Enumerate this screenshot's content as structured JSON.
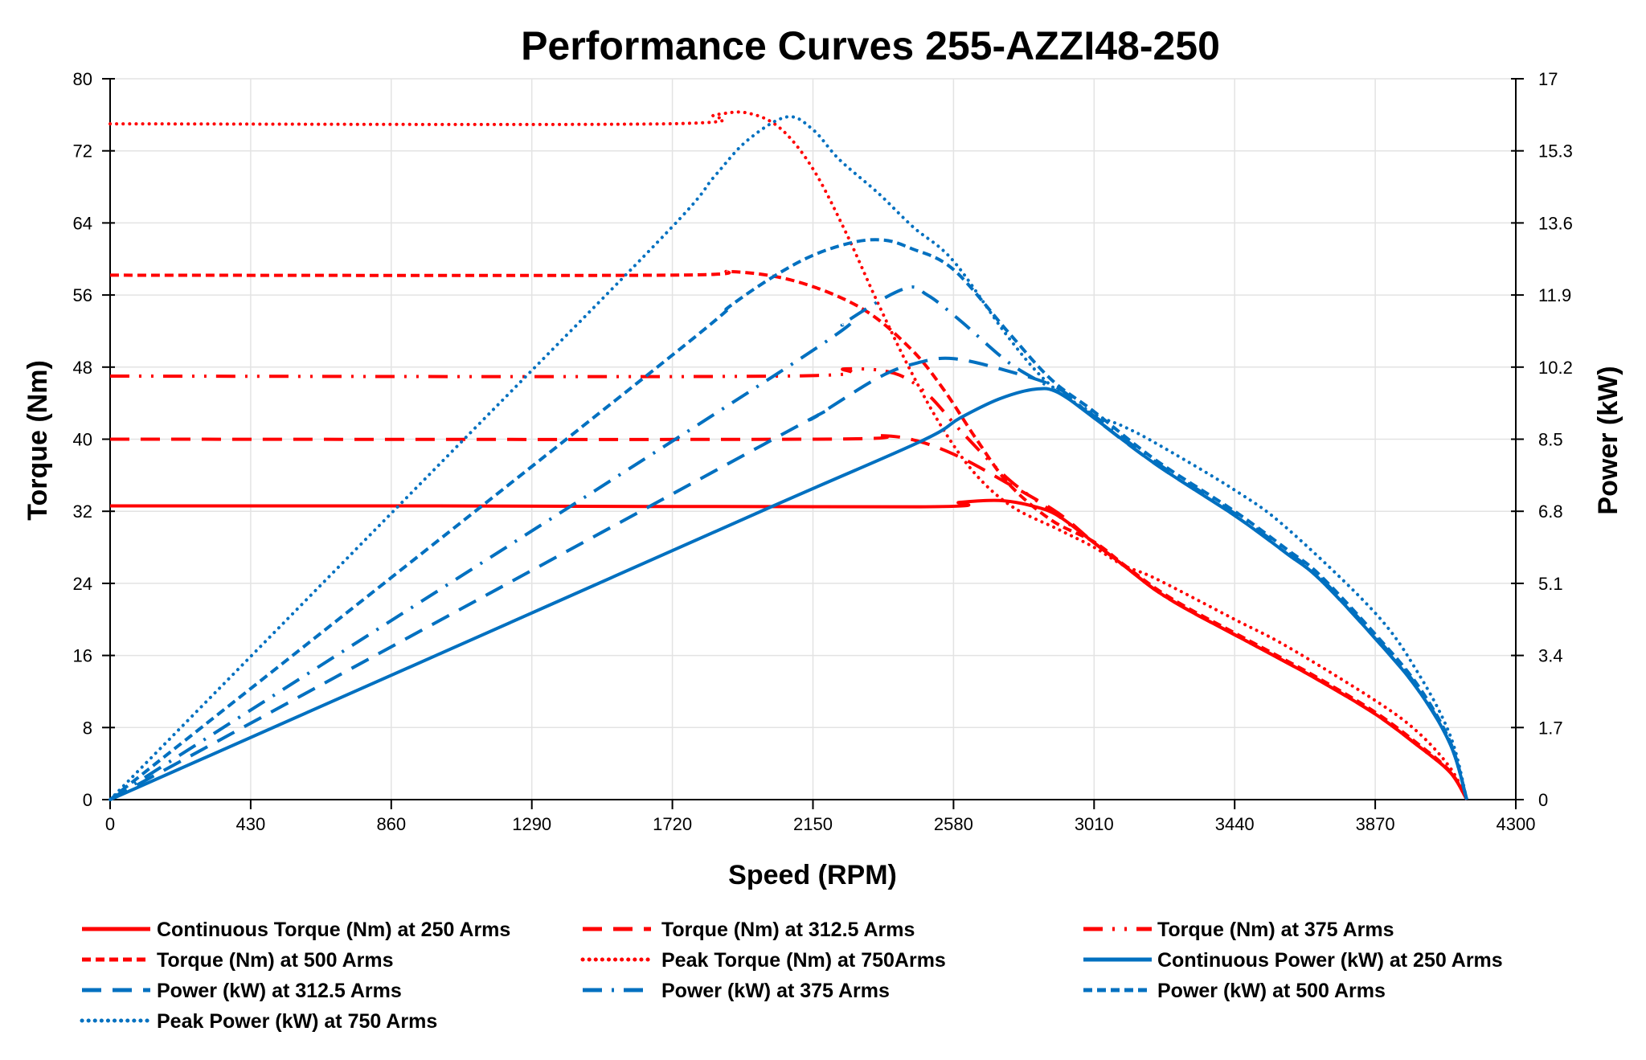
{
  "chart_data": {
    "type": "line",
    "title": "Performance Curves 255-AZZI48-250",
    "xlabel": "Speed (RPM)",
    "ylabel": "Torque (Nm)",
    "y2label": "Power (kW)",
    "xlim": [
      0,
      4300
    ],
    "ylim": [
      0,
      80
    ],
    "y2lim": [
      0,
      17
    ],
    "xticks": [
      "0",
      "430",
      "860",
      "1290",
      "1720",
      "2150",
      "2580",
      "3010",
      "3440",
      "3870",
      "4300"
    ],
    "yticks": [
      "0",
      "8",
      "16",
      "24",
      "32",
      "40",
      "48",
      "56",
      "64",
      "72",
      "80"
    ],
    "y2ticks": [
      "0",
      "1.7",
      "3.4",
      "5.1",
      "6.8",
      "8.5",
      "10.2",
      "11.9",
      "13.6",
      "15.3",
      "17"
    ],
    "grid": true,
    "legend_placement": "bottom",
    "colors": {
      "torque": "#FF0000",
      "power": "#0070C0"
    },
    "series": [
      {
        "name": "Continuous Torque (Nm) at 250 Arms",
        "axis": "left",
        "color": "#FF0000",
        "style": "solid",
        "points": [
          [
            0,
            32.6
          ],
          [
            1000,
            32.6
          ],
          [
            2480,
            32.5
          ],
          [
            2600,
            33.0
          ],
          [
            2720,
            33.2
          ],
          [
            2820,
            32.6
          ],
          [
            2900,
            31.5
          ],
          [
            3010,
            28.5
          ],
          [
            3100,
            26.0
          ],
          [
            3200,
            23.2
          ],
          [
            3300,
            21.0
          ],
          [
            3440,
            18.3
          ],
          [
            3600,
            15.2
          ],
          [
            3700,
            13.2
          ],
          [
            3870,
            9.5
          ],
          [
            4000,
            6.0
          ],
          [
            4100,
            3.0
          ],
          [
            4150,
            0
          ]
        ]
      },
      {
        "name": "Torque (Nm) at 312.5 Arms",
        "axis": "left",
        "color": "#FF0000",
        "style": "long-dash",
        "points": [
          [
            0,
            40.0
          ],
          [
            2150,
            40.0
          ],
          [
            2350,
            40.4
          ],
          [
            2470,
            39.8
          ],
          [
            2600,
            38.0
          ],
          [
            2750,
            35.0
          ],
          [
            2900,
            31.8
          ],
          [
            3010,
            28.5
          ],
          [
            3100,
            26.0
          ],
          [
            3200,
            23.2
          ],
          [
            3300,
            21.0
          ],
          [
            3440,
            18.3
          ],
          [
            3600,
            15.2
          ],
          [
            3700,
            13.2
          ],
          [
            3870,
            9.5
          ],
          [
            4000,
            6.0
          ],
          [
            4100,
            3.0
          ],
          [
            4150,
            0
          ]
        ]
      },
      {
        "name": "Torque (Nm) at 375 Arms",
        "axis": "left",
        "color": "#FF0000",
        "style": "dash-dot-dot",
        "points": [
          [
            0,
            47.0
          ],
          [
            2050,
            47.0
          ],
          [
            2250,
            47.8
          ],
          [
            2400,
            47.3
          ],
          [
            2500,
            45.0
          ],
          [
            2600,
            41.0
          ],
          [
            2750,
            35.5
          ],
          [
            2900,
            31.5
          ],
          [
            3010,
            28.5
          ],
          [
            3100,
            26.0
          ],
          [
            3200,
            23.2
          ],
          [
            3300,
            21.0
          ],
          [
            3440,
            18.3
          ],
          [
            3600,
            15.2
          ],
          [
            3700,
            13.2
          ],
          [
            3870,
            9.5
          ],
          [
            4000,
            6.0
          ],
          [
            4100,
            3.0
          ],
          [
            4150,
            0
          ]
        ]
      },
      {
        "name": "Torque (Nm) at 500 Arms",
        "axis": "left",
        "color": "#FF0000",
        "style": "short-dash",
        "points": [
          [
            0,
            58.2
          ],
          [
            1700,
            58.2
          ],
          [
            1900,
            58.6
          ],
          [
            2100,
            57.5
          ],
          [
            2300,
            54.5
          ],
          [
            2450,
            50.0
          ],
          [
            2550,
            45.5
          ],
          [
            2650,
            40.0
          ],
          [
            2750,
            35.0
          ],
          [
            2880,
            31.0
          ],
          [
            3010,
            28.6
          ],
          [
            3100,
            26.1
          ],
          [
            3200,
            23.4
          ],
          [
            3300,
            21.2
          ],
          [
            3440,
            18.5
          ],
          [
            3600,
            15.4
          ],
          [
            3700,
            13.4
          ],
          [
            3870,
            9.7
          ],
          [
            4000,
            6.2
          ],
          [
            4100,
            3.1
          ],
          [
            4150,
            0
          ]
        ]
      },
      {
        "name": "Peak  Torque (Nm) at 750Arms",
        "axis": "left",
        "color": "#FF0000",
        "style": "dotted",
        "points": [
          [
            0,
            75.0
          ],
          [
            1700,
            75.0
          ],
          [
            1850,
            76.0
          ],
          [
            1950,
            76.2
          ],
          [
            2050,
            74.5
          ],
          [
            2150,
            70.0
          ],
          [
            2250,
            63.0
          ],
          [
            2350,
            55.0
          ],
          [
            2450,
            47.5
          ],
          [
            2550,
            41.0
          ],
          [
            2650,
            36.0
          ],
          [
            2760,
            32.5
          ],
          [
            2900,
            30.0
          ],
          [
            3010,
            28.0
          ],
          [
            3100,
            26.0
          ],
          [
            3200,
            24.5
          ],
          [
            3440,
            20.0
          ],
          [
            3600,
            17.0
          ],
          [
            3870,
            11.0
          ],
          [
            4000,
            7.5
          ],
          [
            4100,
            3.5
          ],
          [
            4150,
            0
          ]
        ]
      },
      {
        "name": "Continuous Power (kW) at 250 Arms",
        "axis": "right",
        "color": "#0070C0",
        "style": "solid",
        "points": [
          [
            0,
            0
          ],
          [
            1000,
            3.41
          ],
          [
            2000,
            6.83
          ],
          [
            2480,
            8.45
          ],
          [
            2600,
            9.0
          ],
          [
            2720,
            9.45
          ],
          [
            2830,
            9.68
          ],
          [
            2900,
            9.6
          ],
          [
            3010,
            9.0
          ],
          [
            3200,
            7.9
          ],
          [
            3440,
            6.7
          ],
          [
            3600,
            5.8
          ],
          [
            3700,
            5.2
          ],
          [
            3870,
            3.8
          ],
          [
            4000,
            2.6
          ],
          [
            4100,
            1.3
          ],
          [
            4150,
            0
          ]
        ]
      },
      {
        "name": "Power (kW) at 312.5 Arms",
        "axis": "right",
        "color": "#0070C0",
        "style": "long-dash",
        "points": [
          [
            0,
            0
          ],
          [
            2000,
            8.38
          ],
          [
            2150,
            9.0
          ],
          [
            2350,
            9.95
          ],
          [
            2470,
            10.3
          ],
          [
            2580,
            10.4
          ],
          [
            2750,
            10.1
          ],
          [
            2900,
            9.7
          ],
          [
            3010,
            9.0
          ],
          [
            3200,
            7.9
          ],
          [
            3440,
            6.7
          ],
          [
            3600,
            5.8
          ],
          [
            3700,
            5.2
          ],
          [
            3870,
            3.8
          ],
          [
            4000,
            2.6
          ],
          [
            4100,
            1.3
          ],
          [
            4150,
            0
          ]
        ]
      },
      {
        "name": "Power (kW) at 375 Arms",
        "axis": "right",
        "color": "#0070C0",
        "style": "dash-dot",
        "points": [
          [
            0,
            0
          ],
          [
            2050,
            10.09
          ],
          [
            2250,
            11.26
          ],
          [
            2430,
            12.05
          ],
          [
            2500,
            11.9
          ],
          [
            2600,
            11.3
          ],
          [
            2750,
            10.3
          ],
          [
            2880,
            9.7
          ],
          [
            3010,
            9.05
          ],
          [
            3200,
            7.95
          ],
          [
            3440,
            6.75
          ],
          [
            3600,
            5.85
          ],
          [
            3700,
            5.25
          ],
          [
            3870,
            3.85
          ],
          [
            4000,
            2.65
          ],
          [
            4100,
            1.3
          ],
          [
            4150,
            0
          ]
        ]
      },
      {
        "name": "Power (kW) at 500 Arms",
        "axis": "right",
        "color": "#0070C0",
        "style": "short-dash",
        "points": [
          [
            0,
            0
          ],
          [
            1700,
            10.36
          ],
          [
            1900,
            11.66
          ],
          [
            2100,
            12.65
          ],
          [
            2250,
            13.1
          ],
          [
            2360,
            13.2
          ],
          [
            2450,
            13.0
          ],
          [
            2580,
            12.5
          ],
          [
            2750,
            11.0
          ],
          [
            2880,
            9.9
          ],
          [
            3010,
            9.15
          ],
          [
            3200,
            8.0
          ],
          [
            3440,
            6.8
          ],
          [
            3600,
            5.9
          ],
          [
            3700,
            5.3
          ],
          [
            3870,
            3.9
          ],
          [
            4000,
            2.7
          ],
          [
            4100,
            1.35
          ],
          [
            4150,
            0
          ]
        ]
      },
      {
        "name": "Peak Power (kW) at 750 Arms",
        "axis": "right",
        "color": "#0070C0",
        "style": "dotted",
        "points": [
          [
            0,
            0
          ],
          [
            1000,
            7.85
          ],
          [
            1700,
            13.35
          ],
          [
            1850,
            14.71
          ],
          [
            1950,
            15.55
          ],
          [
            2070,
            16.1
          ],
          [
            2150,
            15.8
          ],
          [
            2230,
            15.1
          ],
          [
            2350,
            14.3
          ],
          [
            2457,
            13.5
          ],
          [
            2580,
            12.7
          ],
          [
            2748,
            10.9
          ],
          [
            2873,
            9.8
          ],
          [
            3010,
            9.1
          ],
          [
            3100,
            8.8
          ],
          [
            3200,
            8.4
          ],
          [
            3440,
            7.3
          ],
          [
            3600,
            6.4
          ],
          [
            3870,
            4.4
          ],
          [
            4000,
            3.0
          ],
          [
            4100,
            1.5
          ],
          [
            4150,
            0
          ]
        ]
      }
    ]
  }
}
